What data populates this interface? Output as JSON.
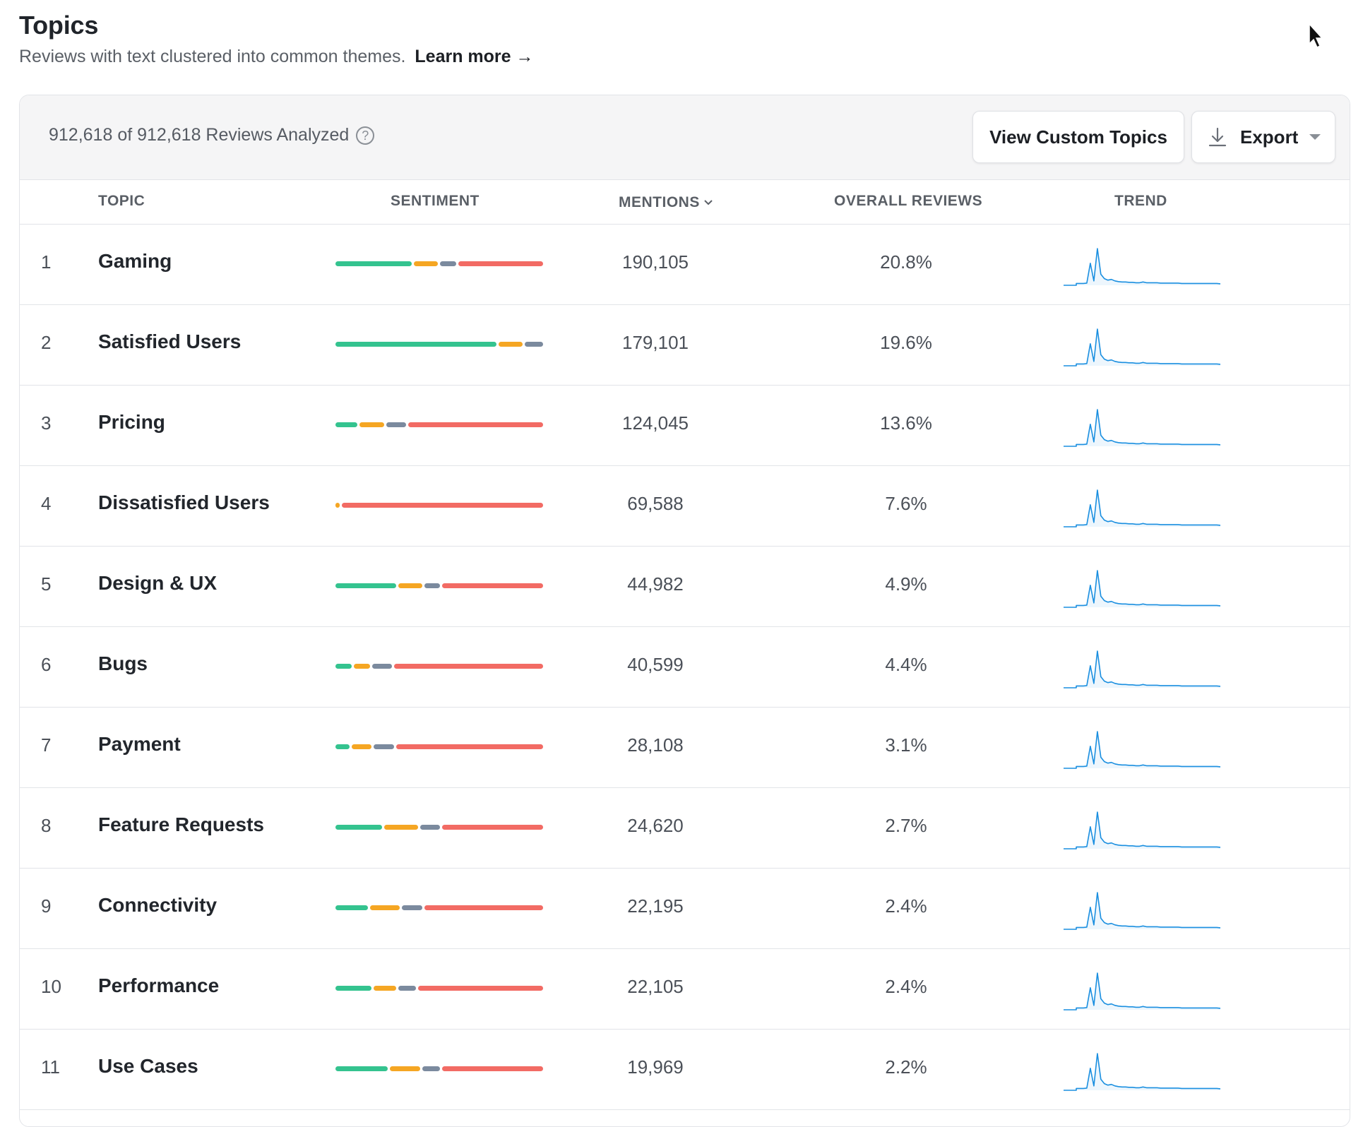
{
  "header": {
    "title": "Topics",
    "subtitle": "Reviews with text clustered into common themes.",
    "learn_more": "Learn more →"
  },
  "toolbar": {
    "count_text": "912,618 of 912,618 Reviews Analyzed",
    "help_icon": "?",
    "view_custom_label": "View Custom Topics",
    "export_label": "Export"
  },
  "columns": {
    "topic": "TOPIC",
    "sentiment": "SENTIMENT",
    "mentions": "MENTIONS",
    "overall": "OVERALL REVIEWS",
    "trend": "TREND"
  },
  "colors": {
    "positive": "#34c38f",
    "mixed": "#f5a623",
    "neutral": "#7b8a9e",
    "negative": "#f26b64",
    "trend_line": "#1a8fe0"
  },
  "sentiment_legend_order": [
    "positive",
    "mixed",
    "neutral",
    "negative"
  ],
  "rows": [
    {
      "rank": "1",
      "topic": "Gaming",
      "sentiment": [
        0.38,
        0.12,
        0.08,
        0.42
      ],
      "mentions": "190,105",
      "overall": "20.8%"
    },
    {
      "rank": "2",
      "topic": "Satisfied Users",
      "sentiment": [
        0.79,
        0.12,
        0.09,
        0.0
      ],
      "mentions": "179,101",
      "overall": "19.6%"
    },
    {
      "rank": "3",
      "topic": "Pricing",
      "sentiment": [
        0.11,
        0.12,
        0.1,
        0.67
      ],
      "mentions": "124,045",
      "overall": "13.6%"
    },
    {
      "rank": "4",
      "topic": "Dissatisfied Users",
      "sentiment": [
        0.0,
        0.02,
        0.0,
        0.98
      ],
      "mentions": "69,588",
      "overall": "7.6%"
    },
    {
      "rank": "5",
      "topic": "Design & UX",
      "sentiment": [
        0.3,
        0.12,
        0.08,
        0.5
      ],
      "mentions": "44,982",
      "overall": "4.9%"
    },
    {
      "rank": "6",
      "topic": "Bugs",
      "sentiment": [
        0.08,
        0.08,
        0.1,
        0.74
      ],
      "mentions": "40,599",
      "overall": "4.4%"
    },
    {
      "rank": "7",
      "topic": "Payment",
      "sentiment": [
        0.07,
        0.1,
        0.1,
        0.73
      ],
      "mentions": "28,108",
      "overall": "3.1%"
    },
    {
      "rank": "8",
      "topic": "Feature Requests",
      "sentiment": [
        0.23,
        0.17,
        0.1,
        0.5
      ],
      "mentions": "24,620",
      "overall": "2.7%"
    },
    {
      "rank": "9",
      "topic": "Connectivity",
      "sentiment": [
        0.16,
        0.15,
        0.1,
        0.59
      ],
      "mentions": "22,195",
      "overall": "2.4%"
    },
    {
      "rank": "10",
      "topic": "Performance",
      "sentiment": [
        0.18,
        0.11,
        0.09,
        0.62
      ],
      "mentions": "22,105",
      "overall": "2.4%"
    },
    {
      "rank": "11",
      "topic": "Use Cases",
      "sentiment": [
        0.26,
        0.15,
        0.09,
        0.5
      ],
      "mentions": "19,969",
      "overall": "2.2%"
    }
  ],
  "trend_shape": [
    0.05,
    0.05,
    0.05,
    0.06,
    0.6,
    0.12,
    1.0,
    0.3,
    0.18,
    0.14,
    0.16,
    0.12,
    0.1,
    0.09,
    0.09,
    0.08,
    0.08,
    0.07,
    0.07,
    0.09,
    0.07,
    0.07,
    0.07,
    0.07,
    0.06,
    0.06,
    0.06,
    0.06,
    0.06,
    0.06,
    0.05,
    0.05,
    0.05,
    0.05,
    0.05,
    0.05,
    0.05,
    0.05,
    0.05,
    0.05,
    0.05,
    0.04
  ]
}
